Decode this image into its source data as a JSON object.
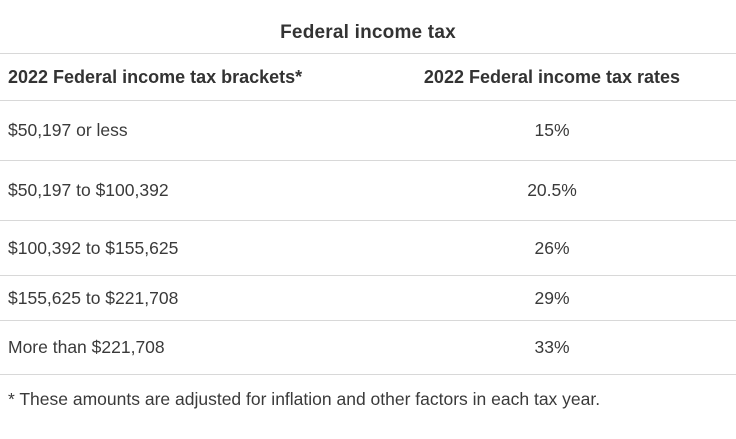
{
  "title": "Federal income tax",
  "table": {
    "columns": {
      "brackets": "2022 Federal income tax brackets*",
      "rates": "2022 Federal income tax rates"
    },
    "rows": [
      {
        "bracket": "$50,197 or less",
        "rate": "15%"
      },
      {
        "bracket": "$50,197 to $100,392",
        "rate": "20.5%"
      },
      {
        "bracket": "$100,392 to $155,625",
        "rate": "26%"
      },
      {
        "bracket": "$155,625 to $221,708",
        "rate": "29%"
      },
      {
        "bracket": "More than $221,708",
        "rate": "33%"
      }
    ],
    "footnote": "* These amounts are adjusted for inflation and other factors in each tax year."
  },
  "colors": {
    "text": "#3a3a3a",
    "heading_text": "#333333",
    "border": "#d8d8d8",
    "background": "#ffffff"
  },
  "chart_data": {
    "type": "table",
    "title": "Federal income tax",
    "columns": [
      "2022 Federal income tax brackets*",
      "2022 Federal income tax rates"
    ],
    "rows": [
      [
        "$50,197 or less",
        "15%"
      ],
      [
        "$50,197 to $100,392",
        "20.5%"
      ],
      [
        "$100,392 to $155,625",
        "26%"
      ],
      [
        "$155,625 to $221,708",
        "29%"
      ],
      [
        "More than $221,708",
        "33%"
      ]
    ],
    "rates_numeric_percent": [
      15,
      20.5,
      26,
      29,
      33
    ],
    "footnote": "* These amounts are adjusted for inflation and other factors in each tax year."
  }
}
